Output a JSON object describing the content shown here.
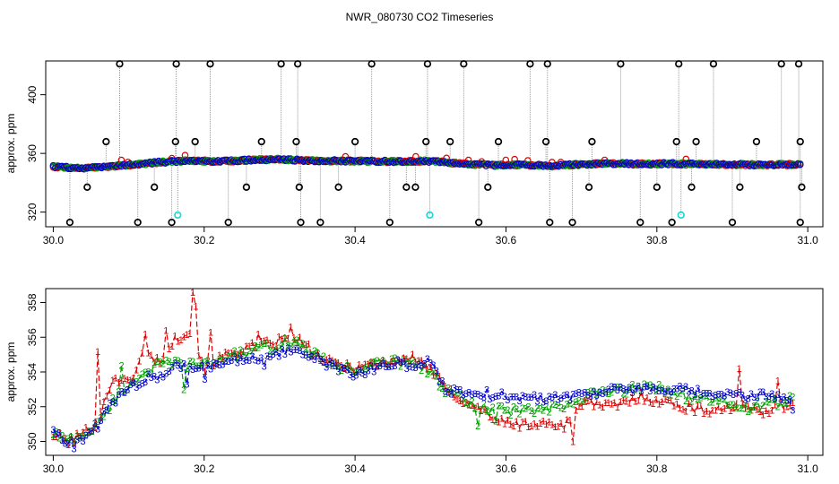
{
  "figure_title": "NWR_080730  CO2 Timeseries",
  "colors": {
    "series_1": "#dd0000",
    "series_2": "#00a000",
    "series_3": "#0000cc",
    "flagged": "#000000",
    "alt_flag": "#22d6d6",
    "spikes": "#999999"
  },
  "chart_data": [
    {
      "type": "scatter",
      "title": "",
      "xlabel": "",
      "ylabel": "approx. ppm",
      "xlim": [
        29.99,
        31.02
      ],
      "ylim": [
        310,
        423
      ],
      "xticks": [
        "30.0",
        "30.2",
        "30.4",
        "30.6",
        "30.8",
        "31.0"
      ],
      "yticks": [
        "320",
        "360",
        "400"
      ],
      "baseline_knots": {
        "x": [
          30.0,
          30.03,
          30.06,
          30.1,
          30.14,
          30.18,
          30.22,
          30.26,
          30.3,
          30.32,
          30.34,
          30.4,
          30.45,
          30.5,
          30.54,
          30.58,
          30.62,
          30.66,
          30.7,
          30.74,
          30.78,
          30.82,
          30.86,
          30.9,
          30.94,
          30.99
        ],
        "y": [
          351,
          350,
          350.5,
          352,
          354,
          355,
          354.5,
          355.5,
          356,
          355.5,
          355,
          354.8,
          354.5,
          354.8,
          353,
          352,
          352.3,
          351.5,
          352.5,
          353.2,
          352.8,
          353,
          352.5,
          352.5,
          352.2,
          352.5
        ]
      },
      "flagged_high": [
        {
          "x": 30.07,
          "y": 368
        },
        {
          "x": 30.088,
          "y": 421
        },
        {
          "x": 30.162,
          "y": 368
        },
        {
          "x": 30.163,
          "y": 421
        },
        {
          "x": 30.188,
          "y": 368
        },
        {
          "x": 30.208,
          "y": 421
        },
        {
          "x": 30.276,
          "y": 368
        },
        {
          "x": 30.302,
          "y": 421
        },
        {
          "x": 30.322,
          "y": 368
        },
        {
          "x": 30.324,
          "y": 421
        },
        {
          "x": 30.4,
          "y": 368
        },
        {
          "x": 30.422,
          "y": 421
        },
        {
          "x": 30.494,
          "y": 368
        },
        {
          "x": 30.496,
          "y": 421
        },
        {
          "x": 30.526,
          "y": 368
        },
        {
          "x": 30.544,
          "y": 421
        },
        {
          "x": 30.59,
          "y": 368
        },
        {
          "x": 30.632,
          "y": 421
        },
        {
          "x": 30.653,
          "y": 368
        },
        {
          "x": 30.655,
          "y": 421
        },
        {
          "x": 30.714,
          "y": 368
        },
        {
          "x": 30.752,
          "y": 421
        },
        {
          "x": 30.826,
          "y": 368
        },
        {
          "x": 30.829,
          "y": 421
        },
        {
          "x": 30.852,
          "y": 368
        },
        {
          "x": 30.875,
          "y": 421
        },
        {
          "x": 30.932,
          "y": 368
        },
        {
          "x": 30.965,
          "y": 421
        },
        {
          "x": 30.988,
          "y": 421
        },
        {
          "x": 30.99,
          "y": 368
        }
      ],
      "flagged_low": [
        {
          "x": 30.022,
          "y": 313
        },
        {
          "x": 30.045,
          "y": 337
        },
        {
          "x": 30.112,
          "y": 313
        },
        {
          "x": 30.134,
          "y": 337
        },
        {
          "x": 30.157,
          "y": 313
        },
        {
          "x": 30.232,
          "y": 313
        },
        {
          "x": 30.256,
          "y": 337
        },
        {
          "x": 30.326,
          "y": 337
        },
        {
          "x": 30.328,
          "y": 313
        },
        {
          "x": 30.354,
          "y": 313
        },
        {
          "x": 30.378,
          "y": 337
        },
        {
          "x": 30.446,
          "y": 313
        },
        {
          "x": 30.468,
          "y": 337
        },
        {
          "x": 30.48,
          "y": 337
        },
        {
          "x": 30.564,
          "y": 313
        },
        {
          "x": 30.576,
          "y": 337
        },
        {
          "x": 30.658,
          "y": 313
        },
        {
          "x": 30.688,
          "y": 313
        },
        {
          "x": 30.71,
          "y": 337
        },
        {
          "x": 30.778,
          "y": 313
        },
        {
          "x": 30.8,
          "y": 337
        },
        {
          "x": 30.82,
          "y": 313
        },
        {
          "x": 30.846,
          "y": 337
        },
        {
          "x": 30.9,
          "y": 313
        },
        {
          "x": 30.91,
          "y": 337
        },
        {
          "x": 30.99,
          "y": 313
        },
        {
          "x": 30.992,
          "y": 337
        }
      ],
      "alt_flag_points": [
        {
          "x": 30.165,
          "y": 318
        },
        {
          "x": 30.499,
          "y": 318
        },
        {
          "x": 30.832,
          "y": 318
        }
      ]
    },
    {
      "type": "line",
      "title": "",
      "xlabel": "",
      "ylabel": "approx. ppm",
      "xlim": [
        29.99,
        31.02
      ],
      "ylim": [
        349.2,
        358.8
      ],
      "xticks": [
        "30.0",
        "30.2",
        "30.4",
        "30.6",
        "30.8",
        "31.0"
      ],
      "yticks": [
        "350",
        "352",
        "354",
        "356",
        "358"
      ],
      "x_range": [
        30.0,
        30.98
      ],
      "n_points": 250,
      "series": [
        {
          "name": "1",
          "knots_x": [
            30.0,
            30.02,
            30.04,
            30.06,
            30.08,
            30.1,
            30.12,
            30.14,
            30.16,
            30.18,
            30.2,
            30.24,
            30.28,
            30.32,
            30.36,
            30.4,
            30.44,
            30.48,
            30.5,
            30.52,
            30.56,
            30.6,
            30.64,
            30.68,
            30.7,
            30.74,
            30.78,
            30.82,
            30.86,
            30.9,
            30.94,
            30.98
          ],
          "knots_y": [
            350.4,
            350,
            350.5,
            351.2,
            353.8,
            353.3,
            355.2,
            354.6,
            355.8,
            356.5,
            354.3,
            355.2,
            355.6,
            356.0,
            354.6,
            354.3,
            354.6,
            354.8,
            354.2,
            353.0,
            352.0,
            351.0,
            351.0,
            351.0,
            352.3,
            352.0,
            352.6,
            352.2,
            351.8,
            352.0,
            351.8,
            352.2
          ],
          "spikes": [
            {
              "x": 30.0575,
              "y": 355.2
            },
            {
              "x": 30.1235,
              "y": 356.2
            },
            {
              "x": 30.1495,
              "y": 356.4
            },
            {
              "x": 30.1869,
              "y": 358.6
            },
            {
              "x": 30.1906,
              "y": 357.8
            },
            {
              "x": 30.2089,
              "y": 356.3
            },
            {
              "x": 30.2714,
              "y": 356.2
            },
            {
              "x": 30.3154,
              "y": 356.6
            },
            {
              "x": 30.6886,
              "y": 350.0
            },
            {
              "x": 30.9086,
              "y": 354.2
            },
            {
              "x": 30.9595,
              "y": 353.5
            }
          ]
        },
        {
          "name": "2",
          "knots_x": [
            30.0,
            30.02,
            30.04,
            30.06,
            30.08,
            30.1,
            30.12,
            30.14,
            30.16,
            30.2,
            30.24,
            30.28,
            30.32,
            30.36,
            30.4,
            30.44,
            30.48,
            30.5,
            30.52,
            30.56,
            30.6,
            30.64,
            30.68,
            30.72,
            30.76,
            30.8,
            30.84,
            30.88,
            30.92,
            30.96,
            30.98
          ],
          "knots_y": [
            350.5,
            350,
            350.4,
            351,
            352.4,
            353.2,
            354.0,
            354.4,
            354.5,
            354.4,
            355.0,
            355.4,
            355.8,
            354.6,
            354.1,
            354.6,
            354.6,
            354.0,
            353.0,
            352.0,
            351.8,
            351.8,
            352.0,
            352.8,
            353.0,
            353.2,
            352.6,
            352.3,
            352.0,
            352.2,
            352.5
          ],
          "spikes": [
            {
              "x": 30.0905,
              "y": 354.4
            },
            {
              "x": 30.1748,
              "y": 353.0
            },
            {
              "x": 30.5609,
              "y": 350.9
            },
            {
              "x": 30.5866,
              "y": 351.2
            }
          ]
        },
        {
          "name": "3",
          "knots_x": [
            30.0,
            30.02,
            30.04,
            30.06,
            30.08,
            30.1,
            30.12,
            30.14,
            30.16,
            30.2,
            30.24,
            30.28,
            30.32,
            30.36,
            30.4,
            30.44,
            30.48,
            30.5,
            30.52,
            30.56,
            30.6,
            30.64,
            30.68,
            30.72,
            30.76,
            30.8,
            30.84,
            30.88,
            30.92,
            30.96,
            30.98
          ],
          "knots_y": [
            350.8,
            349.9,
            350.2,
            351.0,
            352.4,
            353.0,
            353.6,
            353.8,
            354.4,
            354.2,
            354.8,
            354.6,
            355.4,
            354.5,
            353.8,
            354.5,
            354.4,
            354.6,
            353.0,
            352.8,
            352.6,
            352.5,
            352.6,
            352.9,
            353.0,
            353.0,
            352.9,
            352.7,
            352.6,
            352.7,
            352.4
          ],
          "spikes": [
            {
              "x": 30.0172,
              "y": 349.9
            },
            {
              "x": 30.0289,
              "y": 349.6
            },
            {
              "x": 30.1784,
              "y": 353.3
            },
            {
              "x": 30.2016,
              "y": 353.6
            },
            {
              "x": 30.6666,
              "y": 352.7
            },
            {
              "x": 30.9889,
              "y": 351.8
            }
          ]
        }
      ]
    }
  ]
}
